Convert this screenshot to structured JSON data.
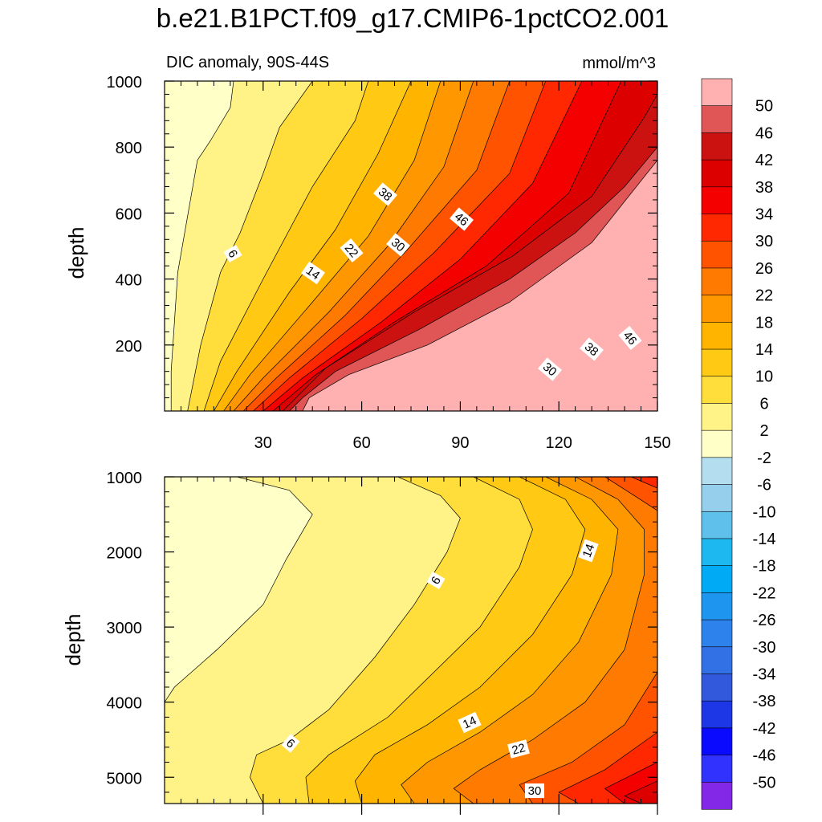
{
  "figure": {
    "title": "b.e21.B1PCT.f09_g17.CMIP6-1pctCO2.001",
    "left_string": "DIC anomaly, 90S-44S",
    "right_string": "mmol/m^3"
  },
  "chart_data": [
    {
      "type": "contour",
      "panel": "upper",
      "xlabel": "",
      "ylabel": "depth",
      "xlim": [
        0,
        150
      ],
      "ylim": [
        1000,
        0
      ],
      "x_ticks": [
        30,
        60,
        90,
        120,
        150
      ],
      "y_ticks": [
        200,
        400,
        600,
        800,
        1000
      ],
      "contour_line_labels": [
        "6",
        "14",
        "22",
        "30",
        "38",
        "46",
        "30",
        "38",
        "46"
      ],
      "contours": [
        {
          "level": 2,
          "line": [
            [
              2,
              0
            ],
            [
              2,
              120
            ],
            [
              4,
              420
            ],
            [
              10,
              760
            ],
            [
              14,
              820
            ],
            [
              20,
              920
            ],
            [
              21,
              1000
            ]
          ]
        },
        {
          "level": 6,
          "line": [
            [
              7,
              0
            ],
            [
              11,
              200
            ],
            [
              17,
              420
            ],
            [
              23,
              540
            ],
            [
              30,
              720
            ],
            [
              35,
              860
            ],
            [
              45,
              1000
            ]
          ]
        },
        {
          "level": 10,
          "line": [
            [
              12,
              0
            ],
            [
              17,
              150
            ],
            [
              30,
              400
            ],
            [
              45,
              680
            ],
            [
              58,
              880
            ],
            [
              62,
              1000
            ]
          ]
        },
        {
          "level": 14,
          "line": [
            [
              15,
              0
            ],
            [
              22,
              120
            ],
            [
              38,
              360
            ],
            [
              52,
              550
            ],
            [
              65,
              780
            ],
            [
              75,
              1000
            ]
          ]
        },
        {
          "level": 18,
          "line": [
            [
              18,
              0
            ],
            [
              26,
              110
            ],
            [
              45,
              330
            ],
            [
              62,
              530
            ],
            [
              76,
              760
            ],
            [
              84,
              1000
            ]
          ]
        },
        {
          "level": 22,
          "line": [
            [
              21,
              0
            ],
            [
              30,
              100
            ],
            [
              50,
              300
            ],
            [
              68,
              500
            ],
            [
              85,
              740
            ],
            [
              94,
              1000
            ]
          ]
        },
        {
          "level": 26,
          "line": [
            [
              24,
              0
            ],
            [
              34,
              100
            ],
            [
              55,
              290
            ],
            [
              74,
              490
            ],
            [
              95,
              730
            ],
            [
              105,
              1000
            ]
          ]
        },
        {
          "level": 30,
          "line": [
            [
              27,
              0
            ],
            [
              38,
              100
            ],
            [
              60,
              280
            ],
            [
              82,
              480
            ],
            [
              105,
              720
            ],
            [
              116,
              1000
            ]
          ]
        },
        {
          "level": 34,
          "line": [
            [
              30,
              0
            ],
            [
              42,
              100
            ],
            [
              66,
              270
            ],
            [
              90,
              460
            ],
            [
              112,
              690
            ],
            [
              127,
              1000
            ]
          ]
        },
        {
          "level": 38,
          "line": [
            [
              33,
              0
            ],
            [
              46,
              110
            ],
            [
              70,
              270
            ],
            [
              98,
              440
            ],
            [
              123,
              660
            ],
            [
              139,
              1000
            ]
          ]
        },
        {
          "level": 42,
          "line": [
            [
              36,
              0
            ],
            [
              49,
              130
            ],
            [
              76,
              300
            ],
            [
              106,
              470
            ],
            [
              130,
              650
            ],
            [
              146,
              890
            ],
            [
              150,
              960
            ]
          ]
        },
        {
          "level": 46,
          "line": [
            [
              38,
              0
            ],
            [
              42,
              40
            ],
            [
              52,
              120
            ],
            [
              78,
              250
            ],
            [
              105,
              400
            ],
            [
              125,
              540
            ],
            [
              140,
              680
            ],
            [
              150,
              800
            ]
          ]
        },
        {
          "level": 50,
          "line": [
            [
              42,
              0
            ],
            [
              44,
              40
            ],
            [
              56,
              110
            ],
            [
              80,
              200
            ],
            [
              105,
              330
            ],
            [
              130,
              510
            ],
            [
              150,
              760
            ]
          ]
        }
      ]
    },
    {
      "type": "contour",
      "panel": "lower",
      "xlabel": "",
      "ylabel": "depth",
      "xlim": [
        0,
        150
      ],
      "ylim": [
        1000,
        5350
      ],
      "x_ticks": [
        30,
        60,
        90,
        120,
        150
      ],
      "y_ticks": [
        1000,
        2000,
        3000,
        4000,
        5000
      ],
      "contour_line_labels": [
        "6",
        "14",
        "6",
        "14",
        "22",
        "30"
      ],
      "contours": [
        {
          "level": 2,
          "line": [
            [
              22,
              1000
            ],
            [
              38,
              1180
            ],
            [
              45,
              1500
            ],
            [
              41,
              1800
            ],
            [
              37,
              2100
            ],
            [
              30,
              2700
            ],
            [
              16,
              3300
            ],
            [
              3,
              3800
            ],
            [
              0,
              4000
            ]
          ]
        },
        {
          "level": 6,
          "line": [
            [
              71,
              1000
            ],
            [
              84,
              1250
            ],
            [
              90,
              1550
            ],
            [
              86,
              2000
            ],
            [
              76,
              2700
            ],
            [
              64,
              3400
            ],
            [
              50,
              4100
            ],
            [
              38,
              4500
            ],
            [
              28,
              4700
            ],
            [
              26,
              5000
            ],
            [
              30,
              5350
            ]
          ]
        },
        {
          "level": 10,
          "line": [
            [
              94,
              1000
            ],
            [
              108,
              1300
            ],
            [
              112,
              1700
            ],
            [
              108,
              2200
            ],
            [
              96,
              3000
            ],
            [
              82,
              3600
            ],
            [
              68,
              4200
            ],
            [
              50,
              4700
            ],
            [
              43,
              5000
            ],
            [
              44,
              5350
            ]
          ]
        },
        {
          "level": 14,
          "line": [
            [
              108,
              1000
            ],
            [
              122,
              1300
            ],
            [
              128,
              1700
            ],
            [
              124,
              2300
            ],
            [
              112,
              3100
            ],
            [
              96,
              3800
            ],
            [
              80,
              4300
            ],
            [
              64,
              4700
            ],
            [
              58,
              5050
            ],
            [
              60,
              5350
            ]
          ]
        },
        {
          "level": 18,
          "line": [
            [
              116,
              1000
            ],
            [
              130,
              1300
            ],
            [
              138,
              1700
            ],
            [
              136,
              2300
            ],
            [
              126,
              3200
            ],
            [
              112,
              3900
            ],
            [
              96,
              4400
            ],
            [
              80,
              4800
            ],
            [
              72,
              5100
            ],
            [
              76,
              5350
            ]
          ]
        },
        {
          "level": 22,
          "line": [
            [
              125,
              1000
            ],
            [
              138,
              1300
            ],
            [
              146,
              1700
            ],
            [
              146,
              2300
            ],
            [
              140,
              3300
            ],
            [
              128,
              4000
            ],
            [
              112,
              4500
            ],
            [
              96,
              4900
            ],
            [
              88,
              5150
            ],
            [
              94,
              5350
            ]
          ]
        },
        {
          "level": 26,
          "line": [
            [
              134,
              1000
            ],
            [
              143,
              1250
            ],
            [
              150,
              1450
            ]
          ]
        },
        {
          "level": 26,
          "line": [
            [
              150,
              3600
            ],
            [
              140,
              4300
            ],
            [
              124,
              4800
            ],
            [
              108,
              5100
            ],
            [
              112,
              5350
            ]
          ]
        },
        {
          "level": 30,
          "line": [
            [
              142,
              1000
            ],
            [
              150,
              1150
            ]
          ]
        },
        {
          "level": 30,
          "line": [
            [
              150,
              4400
            ],
            [
              134,
              4900
            ],
            [
              120,
              5200
            ],
            [
              126,
              5350
            ]
          ]
        },
        {
          "level": 34,
          "line": [
            [
              150,
              4800
            ],
            [
              134,
              5150
            ],
            [
              140,
              5350
            ]
          ]
        },
        {
          "level": 38,
          "line": [
            [
              150,
              5050
            ],
            [
              140,
              5250
            ],
            [
              145,
              5350
            ]
          ]
        }
      ]
    }
  ],
  "colorbar": {
    "labels": [
      "50",
      "46",
      "42",
      "38",
      "34",
      "30",
      "26",
      "22",
      "18",
      "14",
      "10",
      "6",
      "2",
      "-2",
      "-6",
      "-10",
      "-14",
      "-18",
      "-22",
      "-26",
      "-30",
      "-34",
      "-38",
      "-42",
      "-46",
      "-50"
    ],
    "colors": [
      "#FFB0B0",
      "#E05555",
      "#CC1111",
      "#DD0000",
      "#F40000",
      "#FF2800",
      "#FF5300",
      "#FF7A00",
      "#FF9800",
      "#FFB400",
      "#FFC914",
      "#FFDD3A",
      "#FFF287",
      "#FFFFC8",
      "#B4DEF0",
      "#96CFEB",
      "#5FC0EB",
      "#1EB8F0",
      "#00AAF5",
      "#1E96F0",
      "#2D82EB",
      "#3270E6",
      "#3259DC",
      "#1E37E6",
      "#0A0AFF",
      "#3232FF",
      "#8228E6"
    ]
  }
}
